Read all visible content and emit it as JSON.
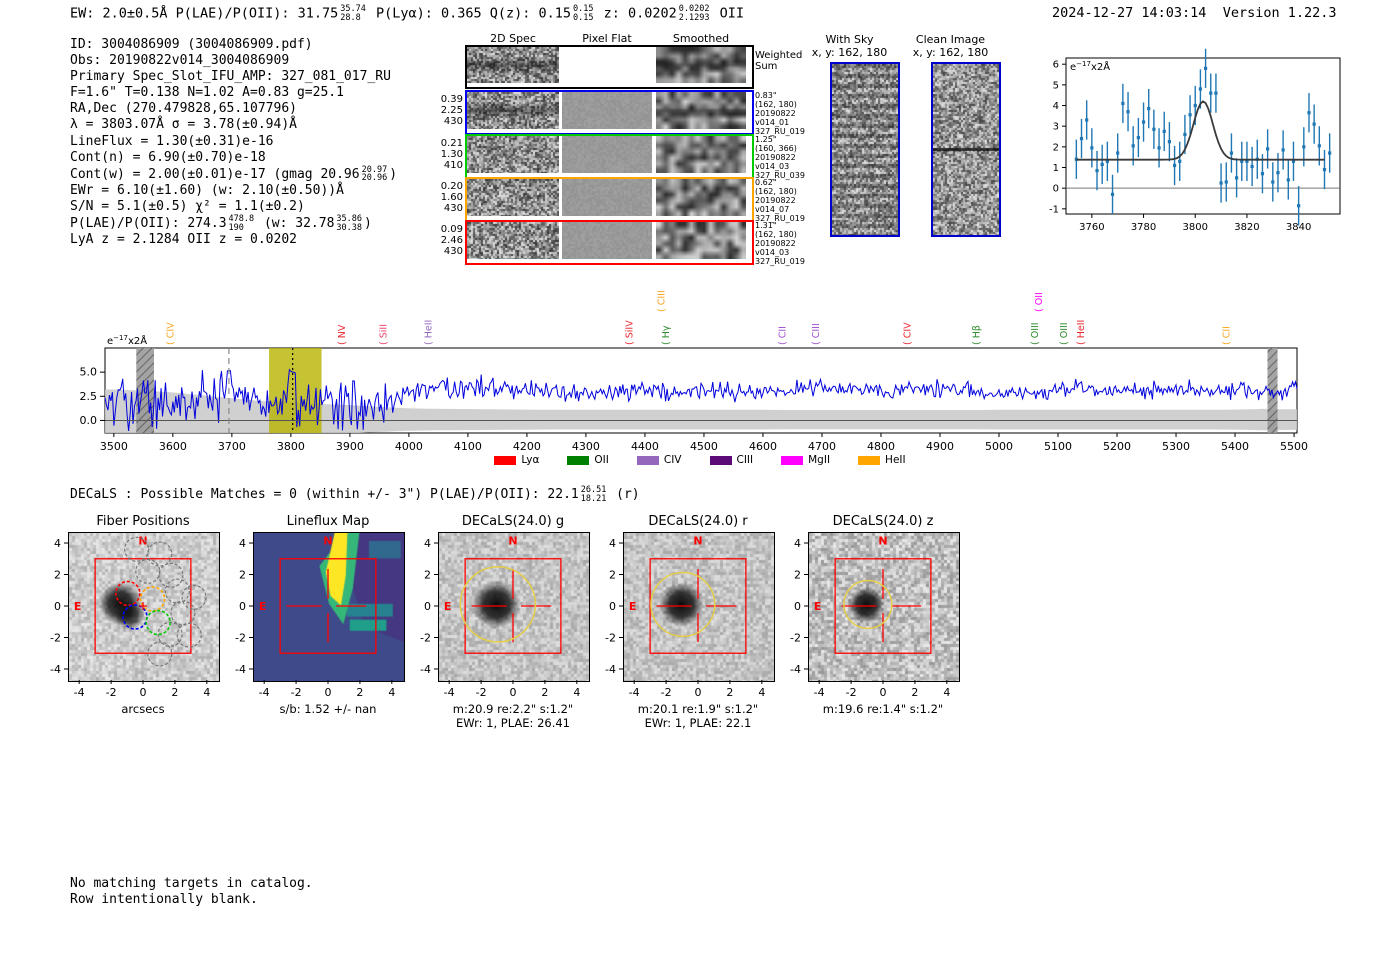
{
  "meta": {
    "datetime": "2024-12-27 14:03:14",
    "version": "Version 1.22.3"
  },
  "top_summary": [
    {
      "t": "EW: 2.0±0.5Å  "
    },
    {
      "t": "P(LAE)/P(OII): 31.75"
    },
    {
      "sup": "35.74",
      "sub": "28.8"
    },
    {
      "t": "  P(Lyα): 0.365  Q(z): 0.15"
    },
    {
      "sup": "0.15",
      "sub": "0.15"
    },
    {
      "t": "  z: 0.0202"
    },
    {
      "sup": "0.0202",
      "sub": "2.1293"
    },
    {
      "t": " OII"
    }
  ],
  "info_lines": [
    [
      {
        "t": "ID: 3004086909 (3004086909.pdf)"
      }
    ],
    [
      {
        "t": "Obs: 20190822v014_3004086909"
      }
    ],
    [
      {
        "t": "Primary Spec_Slot_IFU_AMP: 327_081_017_RU"
      }
    ],
    [
      {
        "t": "F=1.6\"  T=0.138  N=1.02  A=0.83  g=25.1"
      }
    ],
    [
      {
        "t": "RA,Dec (270.479828,65.107796)"
      }
    ],
    [
      {
        "t": "λ = 3803.07Å  σ = 3.78(±0.94)Å"
      }
    ],
    [
      {
        "t": "LineFlux = 1.30(±0.31)e-16"
      }
    ],
    [
      {
        "t": "Cont(n) = 6.90(±0.70)e-18"
      }
    ],
    [
      {
        "t": "Cont(w) = 2.00(±0.01)e-17 (gmag 20.96"
      },
      {
        "sup": "20.97",
        "sub": "20.96"
      },
      {
        "t": ")"
      }
    ],
    [
      {
        "t": "EWr = 6.10(±1.60) (w: 2.10(±0.50))Å"
      }
    ],
    [
      {
        "t": "S/N = 5.1(±0.5)  χ² = 1.1(±0.2)"
      }
    ],
    [
      {
        "t": "P(LAE)/P(OII): 274.3"
      },
      {
        "sup": "478.8",
        "sub": "190"
      },
      {
        "t": " (w: 32.78"
      },
      {
        "sup": "35.86",
        "sub": "30.38"
      },
      {
        "t": ")"
      }
    ],
    [
      {
        "t": "LyA z = 2.1284  OII z = 0.0202"
      }
    ]
  ],
  "spec2d": {
    "col_headers": [
      "2D Spec",
      "Pixel Flat",
      "Smoothed"
    ],
    "weighted_label": [
      "Weighted",
      "Sum"
    ],
    "rows": [
      {
        "color": "#0000ee",
        "left": [
          "0.39",
          "2.25",
          "430"
        ],
        "right": [
          "0.83\"",
          "(162, 180)",
          "20190822",
          "v014_01",
          "327_RU_019"
        ]
      },
      {
        "color": "#00cc00",
        "left": [
          "0.21",
          "1.30",
          "410"
        ],
        "right": [
          "1.25\"",
          "(160, 366)",
          "20190822",
          "v014_03",
          "327_RU_039"
        ]
      },
      {
        "color": "#ffa500",
        "left": [
          "0.20",
          "1.60",
          "430"
        ],
        "right": [
          "0.62\"",
          "(162, 180)",
          "20190822",
          "v014_07",
          "327_RU_019"
        ]
      },
      {
        "color": "#ff0000",
        "left": [
          "0.09",
          "2.46",
          "430"
        ],
        "right": [
          "1.31\"",
          "(162, 180)",
          "20190822",
          "v014_03",
          "327_RU_019"
        ]
      }
    ]
  },
  "sky_panels": [
    {
      "title": "With Sky",
      "subtitle": "x, y: 162, 180",
      "kind": "sky"
    },
    {
      "title": "Clean Image",
      "subtitle": "x, y: 162, 180",
      "kind": "clean"
    }
  ],
  "decals_line": [
    {
      "t": "DECaLS : Possible Matches = 0 (within +/- 3\")  P(LAE)/P(OII): 22.1"
    },
    {
      "sup": "26.51",
      "sub": "18.21"
    },
    {
      "t": " (r)"
    }
  ],
  "footer_lines": [
    "No matching targets in catalog.",
    "Row intentionally blank."
  ],
  "chart_data": [
    {
      "id": "line_fit_inset",
      "type": "scatter",
      "annotation": {
        "prefix": "e",
        "sup": "−17",
        "suffix": "x2Å"
      },
      "xlim": [
        3750,
        3856
      ],
      "ylim": [
        -1.25,
        6.3
      ],
      "xticks": [
        3760,
        3780,
        3800,
        3820,
        3840
      ],
      "yticks": [
        -1,
        0,
        1,
        2,
        3,
        4,
        5,
        6
      ],
      "x_start": 3754,
      "x_step": 2,
      "yerr": 0.95,
      "values": [
        1.4,
        2.4,
        3.3,
        1.95,
        0.85,
        1.15,
        1.3,
        -0.3,
        1.7,
        4.1,
        3.7,
        2.05,
        2.45,
        3.2,
        3.85,
        2.85,
        1.95,
        2.75,
        2.25,
        1.1,
        1.3,
        2.6,
        3.55,
        4.0,
        4.8,
        5.8,
        4.6,
        4.6,
        0.25,
        0.3,
        1.7,
        0.5,
        1.3,
        1.3,
        1.05,
        1.4,
        0.7,
        1.9,
        0.3,
        0.75,
        1.85,
        0.4,
        1.3,
        -0.85,
        2.0,
        3.65,
        3.1,
        2.05,
        0.9,
        1.7
      ],
      "fit": {
        "shape": "gaussian",
        "center": 3803.07,
        "sigma": 3.78,
        "baseline": 1.38,
        "peak": 4.2
      },
      "point_color": "#1f77b4",
      "fit_color": "#3a3a3a",
      "zero_line": 0
    },
    {
      "id": "full_spectrum",
      "type": "line",
      "annotation": {
        "prefix": "e",
        "sup": "−17",
        "suffix": "x2Å"
      },
      "xlim": [
        3485,
        5505
      ],
      "ylim": [
        -1.3,
        7.5
      ],
      "xticks": [
        3500,
        3600,
        3700,
        3800,
        3900,
        4000,
        4100,
        4200,
        4300,
        4400,
        4500,
        4600,
        4700,
        4800,
        4900,
        5000,
        5100,
        5200,
        5300,
        5400,
        5500
      ],
      "yticks": [
        0.0,
        2.5,
        5.0
      ],
      "line_color": "#0000dd",
      "envelope_x": [
        3500,
        3550,
        3600,
        3650,
        3700,
        3750,
        3800,
        3850,
        3900,
        3950,
        4000,
        4050,
        4100,
        4150,
        4200,
        4250,
        4300,
        4350,
        4400,
        4450,
        4500,
        4550,
        4600,
        4650,
        4700,
        4750,
        4800,
        4850,
        4900,
        4950,
        5000,
        5050,
        5100,
        5150,
        5200,
        5250,
        5300,
        5350,
        5400,
        5450,
        5500
      ],
      "envelope_mean": [
        1.5,
        2.0,
        2.2,
        2.5,
        2.8,
        2.0,
        2.8,
        1.5,
        1.8,
        1.5,
        3.0,
        3.2,
        3.5,
        3.3,
        3.2,
        2.8,
        2.7,
        2.8,
        3.0,
        2.8,
        3.2,
        3.0,
        2.9,
        3.2,
        3.4,
        3.3,
        3.1,
        3.3,
        3.2,
        3.0,
        2.9,
        3.0,
        3.1,
        3.3,
        3.2,
        3.1,
        3.3,
        3.2,
        3.1,
        3.0,
        3.2
      ],
      "envelope_noise": [
        1.3,
        1.3,
        1.3,
        1.3,
        1.25,
        1.25,
        1.2,
        1.3,
        1.3,
        1.2,
        0.75,
        0.7,
        0.7,
        0.65,
        0.6,
        0.6,
        0.58,
        0.56,
        0.55,
        0.55,
        0.55,
        0.52,
        0.52,
        0.52,
        0.5,
        0.5,
        0.5,
        0.5,
        0.5,
        0.5,
        0.48,
        0.48,
        0.48,
        0.48,
        0.46,
        0.46,
        0.46,
        0.46,
        0.45,
        0.45,
        0.45
      ],
      "error_top": [
        3.2,
        3.1,
        2.9,
        2.6,
        2.3,
        2.0,
        1.9,
        1.7,
        1.6,
        1.4,
        1.25,
        1.2,
        1.18,
        1.15,
        1.12,
        1.1,
        1.1,
        1.1,
        1.1,
        1.1,
        1.1,
        1.1,
        1.1,
        1.08,
        1.08,
        1.08,
        1.08,
        1.08,
        1.08,
        1.08,
        1.1,
        1.1,
        1.1,
        1.1,
        1.1,
        1.1,
        1.1,
        1.1,
        1.12,
        1.2,
        1.15
      ],
      "bands": [
        {
          "kind": "hatch",
          "x0": 3538,
          "x1": 3568
        },
        {
          "kind": "highlight",
          "x0": 3763,
          "x1": 3852,
          "color": "#b7b300"
        },
        {
          "kind": "hatch",
          "x0": 5455,
          "x1": 5472
        }
      ],
      "vlines": [
        {
          "x": 3695,
          "style": "dashed",
          "color": "#8a8a8a"
        },
        {
          "x": 3803,
          "style": "dotted",
          "color": "#000000"
        }
      ],
      "line_markers": [
        {
          "label": "CIV",
          "wave": 3601,
          "color": "#f5a623",
          "elevated": false
        },
        {
          "label": "NV",
          "wave": 3892,
          "color": "#e8262d",
          "elevated": false
        },
        {
          "label": "SiII",
          "wave": 3962,
          "color": "#e8426a",
          "elevated": false
        },
        {
          "label": "HeII",
          "wave": 4038,
          "color": "#9467bd",
          "elevated": false
        },
        {
          "label": "SiIV",
          "wave": 4379,
          "color": "#e8262d",
          "elevated": false
        },
        {
          "label": "CIII",
          "wave": 4433,
          "color": "#f5a623",
          "elevated": true
        },
        {
          "label": "Hγ",
          "wave": 4441,
          "color": "#2e8b2e",
          "elevated": false
        },
        {
          "label": "CII",
          "wave": 4638,
          "color": "#a050d0",
          "elevated": false
        },
        {
          "label": "CIII",
          "wave": 4695,
          "color": "#a050d0",
          "elevated": false
        },
        {
          "label": "CIV",
          "wave": 4850,
          "color": "#e8262d",
          "elevated": false
        },
        {
          "label": "Hβ",
          "wave": 4967,
          "color": "#2e8b2e",
          "elevated": false
        },
        {
          "label": "OIII",
          "wave": 5066,
          "color": "#2e8b2e",
          "elevated": false
        },
        {
          "label": "OII",
          "wave": 5073,
          "color": "#ff00ff",
          "elevated": true
        },
        {
          "label": "OIII",
          "wave": 5115,
          "color": "#2e8b2e",
          "elevated": false
        },
        {
          "label": "HeII",
          "wave": 5144,
          "color": "#e8262d",
          "elevated": false
        },
        {
          "label": "CII",
          "wave": 5391,
          "color": "#f5a623",
          "elevated": false
        }
      ],
      "legend": [
        {
          "label": "Lyα",
          "color": "#ff0000"
        },
        {
          "label": "OII",
          "color": "#008000"
        },
        {
          "label": "CIV",
          "color": "#9467bd"
        },
        {
          "label": "CIII",
          "color": "#5c0a78"
        },
        {
          "label": "MgII",
          "color": "#ff00ff"
        },
        {
          "label": "HeII",
          "color": "#ffa500"
        }
      ]
    }
  ],
  "cutouts": [
    {
      "title": "Fiber Positions",
      "bg": "fiber",
      "xticks": [
        -4,
        -2,
        0,
        2,
        4
      ],
      "yticks": [
        4,
        2,
        0,
        -2,
        -4
      ],
      "captions": [
        "arcsecs"
      ],
      "compass": {
        "n": "N",
        "e": "E"
      }
    },
    {
      "title": "Lineflux Map",
      "bg": "lineflux",
      "xticks": [
        -4,
        -2,
        0,
        2,
        4
      ],
      "yticks": [
        4,
        2,
        0,
        -2,
        -4
      ],
      "captions": [
        "s/b: 1.52 +/- nan"
      ],
      "compass": {
        "n": "N",
        "e": "E"
      }
    },
    {
      "title": "DECaLS(24.0) g",
      "bg": "decals",
      "blob_r": 1.5,
      "circle_r": 2.35,
      "xticks": [
        -4,
        -2,
        0,
        2,
        4
      ],
      "yticks": [
        4,
        2,
        0,
        -2,
        -4
      ],
      "captions": [
        "m:20.9  re:2.2\"  s:1.2\"",
        "EWr: 1, PLAE: 26.41"
      ],
      "compass": {
        "n": "N",
        "e": "E"
      }
    },
    {
      "title": "DECaLS(24.0) r",
      "bg": "decals",
      "blob_r": 1.4,
      "circle_r": 2.0,
      "xticks": [
        -4,
        -2,
        0,
        2,
        4
      ],
      "yticks": [
        4,
        2,
        0,
        -2,
        -4
      ],
      "captions": [
        "m:20.1  re:1.9\"  s:1.2\"",
        "EWr: 1, PLAE: 22.1"
      ],
      "compass": {
        "n": "N",
        "e": "E"
      }
    },
    {
      "title": "DECaLS(24.0) z",
      "bg": "decalsz",
      "blob_r": 1.15,
      "circle_r": 1.5,
      "xticks": [
        -4,
        -2,
        0,
        2,
        4
      ],
      "yticks": [
        4,
        2,
        0,
        -2,
        -4
      ],
      "captions": [
        "m:19.6  re:1.4\"  s:1.2\""
      ],
      "compass": {
        "n": "N",
        "e": "E"
      }
    }
  ],
  "colors": {
    "annotation_red": "#ff0000",
    "aperture_yellow": "#e5cf4a",
    "panel_border_blue": "#0000cc",
    "error_fill": "#c8c8c8"
  }
}
